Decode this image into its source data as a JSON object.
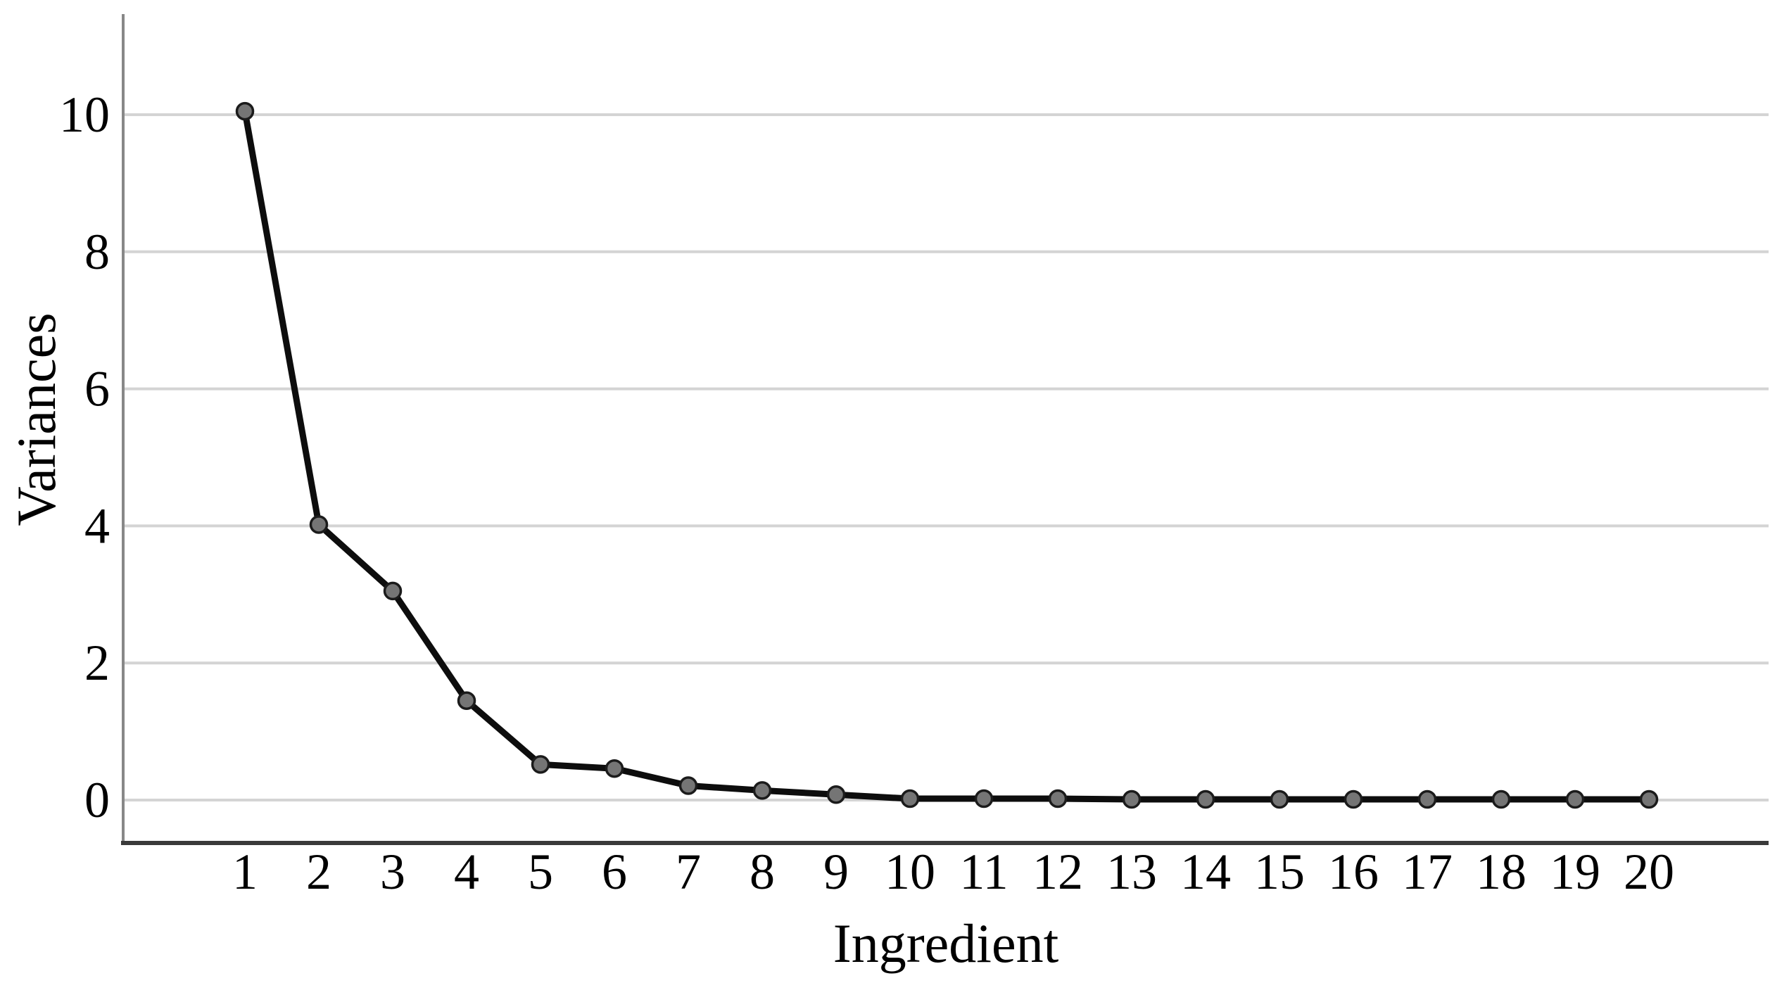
{
  "page": {
    "background_color": "#ffffff"
  },
  "chart_data": {
    "type": "line",
    "title": "",
    "xlabel": "Ingredient",
    "ylabel": "Variances",
    "categories": [
      "1",
      "2",
      "3",
      "4",
      "5",
      "6",
      "7",
      "8",
      "9",
      "10",
      "11",
      "12",
      "13",
      "14",
      "15",
      "16",
      "17",
      "18",
      "19",
      "20"
    ],
    "series": [
      {
        "name": "Variances",
        "values": [
          10.05,
          4.02,
          3.05,
          1.45,
          0.52,
          0.46,
          0.21,
          0.14,
          0.08,
          0.02,
          0.02,
          0.02,
          0.01,
          0.01,
          0.01,
          0.01,
          0.01,
          0.01,
          0.01,
          0.01
        ]
      }
    ],
    "y_ticks": [
      0,
      2,
      4,
      6,
      8,
      10
    ],
    "ylim": [
      0,
      11.5
    ],
    "grid": "horizontal-only",
    "legend_position": "none",
    "marker_shape": "circle",
    "colors": {
      "line": "#0d0d0d",
      "marker_fill": "#757575",
      "marker_stroke": "#1b1b1b",
      "gridline": "#d4d4d4",
      "y_axis_spine": "#888888",
      "x_axis_spine": "#3a3a3a",
      "text": "#000000"
    }
  }
}
